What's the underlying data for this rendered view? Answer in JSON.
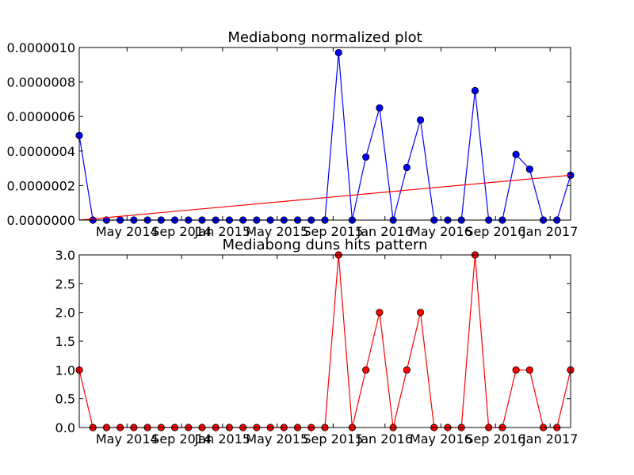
{
  "chart_data": [
    {
      "type": "line",
      "title": "Mediabong normalized plot",
      "xlabel": "",
      "ylabel": "",
      "x_tick_labels": [
        "May 2014",
        "Sep 2014",
        "Jan 2015",
        "May 2015",
        "Sep 2015",
        "Jan 2016",
        "May 2016",
        "Sep 2016",
        "Jan 2017"
      ],
      "y_tick_labels": [
        "0.0000000",
        "0.0000002",
        "0.0000004",
        "0.0000006",
        "0.0000008",
        "0.0000010"
      ],
      "ylim": [
        0,
        1e-06
      ],
      "grid": false,
      "series": [
        {
          "color": "#0000ff",
          "marker": "circle",
          "values": [
            4.9e-07,
            0,
            0,
            0,
            0,
            0,
            0,
            0,
            0,
            0,
            0,
            0,
            0,
            0,
            0,
            0,
            0,
            0,
            0,
            9.7e-07,
            0,
            3.65e-07,
            6.5e-07,
            0,
            3.05e-07,
            5.8e-07,
            0,
            0,
            0,
            7.5e-07,
            0,
            0,
            3.8e-07,
            2.95e-07,
            0,
            0,
            2.6e-07
          ]
        },
        {
          "color": "#ff0000",
          "marker": "none",
          "trend": true,
          "values": [
            0,
            2.6e-07
          ]
        }
      ]
    },
    {
      "type": "line",
      "title": "Mediabong duns hits pattern",
      "xlabel": "",
      "ylabel": "",
      "x_tick_labels": [
        "May 2014",
        "Sep 2014",
        "Jan 2015",
        "May 2015",
        "Sep 2015",
        "Jan 2016",
        "May 2016",
        "Sep 2016",
        "Jan 2017"
      ],
      "y_tick_labels": [
        "0.0",
        "0.5",
        "1.0",
        "1.5",
        "2.0",
        "2.5",
        "3.0"
      ],
      "ylim": [
        0,
        3
      ],
      "grid": false,
      "series": [
        {
          "color": "#ff0000",
          "marker": "circle",
          "values": [
            1,
            0,
            0,
            0,
            0,
            0,
            0,
            0,
            0,
            0,
            0,
            0,
            0,
            0,
            0,
            0,
            0,
            0,
            0,
            3,
            0,
            1,
            2,
            0,
            1,
            2,
            0,
            0,
            0,
            3,
            0,
            0,
            1,
            1,
            0,
            0,
            1
          ]
        }
      ]
    }
  ]
}
